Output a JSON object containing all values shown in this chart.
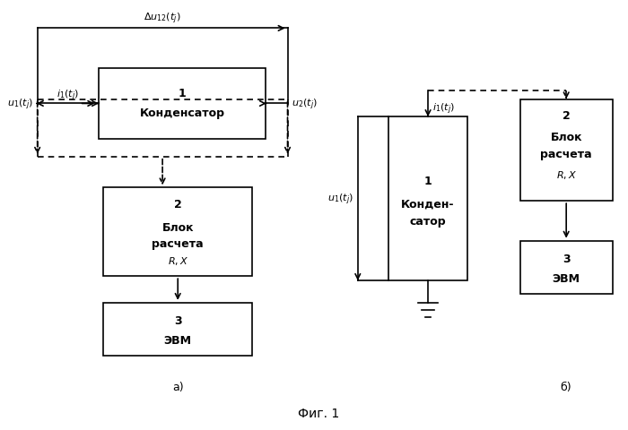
{
  "fig_width": 7.0,
  "fig_height": 4.81,
  "bg_color": "#ffffff",
  "caption": "Фиг. 1",
  "label_a": "а)",
  "label_b": "б)"
}
